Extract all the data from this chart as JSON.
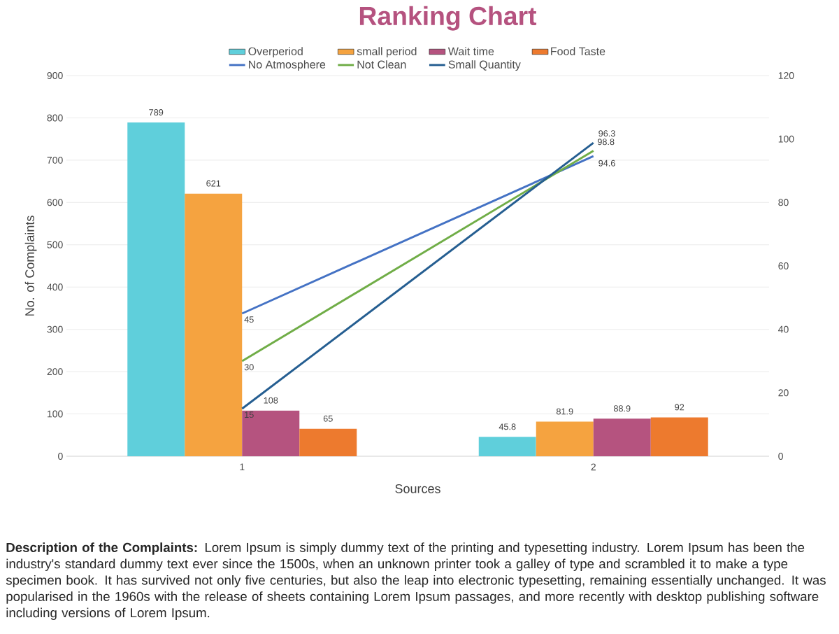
{
  "chart_data": {
    "type": "bar",
    "title": "Ranking Chart",
    "xlabel": "Sources",
    "ylabel": "No. of Complaints",
    "categories": [
      "1",
      "2"
    ],
    "series": [
      {
        "name": "Overperiod",
        "color": "#5fcfdb",
        "values": [
          789,
          45.8
        ]
      },
      {
        "name": "small period",
        "color": "#f5a340",
        "values": [
          621,
          81.9
        ]
      },
      {
        "name": "Wait time",
        "color": "#b5537f",
        "values": [
          108,
          88.9
        ]
      },
      {
        "name": "Food Taste",
        "color": "#ed7a2e",
        "values": [
          65,
          92
        ]
      },
      {
        "name": "No Atmosphere",
        "type": "line",
        "axis": "y2",
        "color": "#4472c4",
        "values": [
          45,
          94.6
        ]
      },
      {
        "name": "Not Clean",
        "type": "line",
        "axis": "y2",
        "color": "#70ad47",
        "values": [
          30,
          96.3
        ]
      },
      {
        "name": "Small Quantity",
        "type": "line",
        "axis": "y2",
        "color": "#255e91",
        "values": [
          15,
          98.8
        ]
      }
    ],
    "ylim": [
      0,
      900
    ],
    "yticks": [
      0,
      100,
      200,
      300,
      400,
      500,
      600,
      700,
      800,
      900
    ],
    "y2lim": [
      0,
      120
    ],
    "y2ticks": [
      0,
      20,
      40,
      60,
      80,
      100,
      120
    ],
    "grid": "y",
    "legend": "top",
    "data_labels": true,
    "marker": "none",
    "line_style": "solid",
    "annotations": [
      "**Description of the Complaints:** Lorem Ipsum is simply dummy text of the printing and typesetting industry. Lorem Ipsum has been the industry's standard dummy text ever since the 1500s, when an unknown printer took a galley of type and scrambled it to make a type specimen book. It has survived not only five centuries, but also the leap into electronic typesetting, remaining essentially unchanged. It was popularised in the 1960s with the release of sheets containing Lorem Ipsum passages, and more recently with desktop publishing software including versions of Lorem Ipsum."
    ]
  }
}
